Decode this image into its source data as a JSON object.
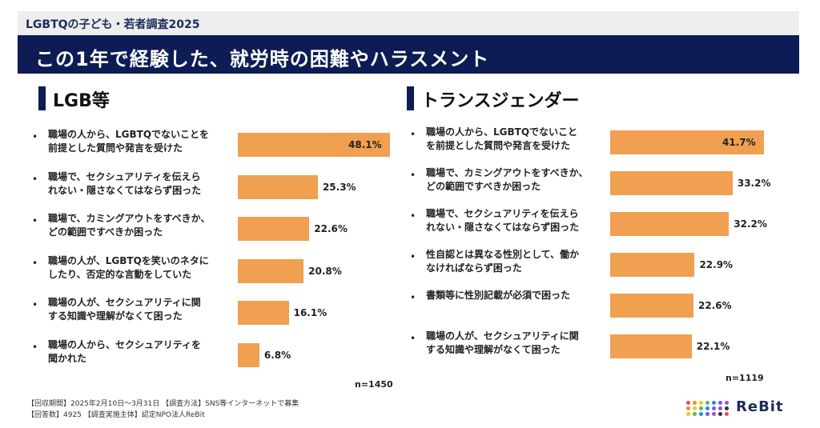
{
  "header": {
    "series_title": "LGBTQの子ども・若者調査2025",
    "main_title": "この1年で経験した、就労時の困難やハラスメント"
  },
  "chart_data": [
    {
      "type": "bar",
      "title": "LGB等",
      "categories": [
        "職場の人から、LGBTQでないことを\n前提とした質問や発言を受けた",
        "職場で、セクシュアリティを伝えら\nれない・隠さなくてはならず困った",
        "職場で、カミングアウトをすべきか、\nどの範囲ですべきか困った",
        "職場の人が、LGBTQを笑いのネタに\nしたり、否定的な言動をしていた",
        "職場の人が、セクシュアリティに関\nする知識や理解がなくて困った",
        "職場の人から、セクシュアリティを\n聞かれた"
      ],
      "values": [
        48.1,
        25.3,
        22.6,
        20.8,
        16.1,
        6.8
      ],
      "value_labels": [
        "48.1%",
        "25.3%",
        "22.6%",
        "20.8%",
        "16.1%",
        "6.8%"
      ],
      "n_label": "n=1450",
      "bar_color": "#f0a050"
    },
    {
      "type": "bar",
      "title": "トランスジェンダー",
      "categories": [
        "職場の人から、LGBTQでないこと\nを前提とした質問や発言を受けた",
        "職場で、カミングアウトをすべきか、\nどの範囲ですべきか困った",
        "職場で、セクシュアリティを伝えら\nれない・隠さなくてはならず困った",
        "性自認とは異なる性別として、働か\nなければならず困った",
        "書類等に性別記載が必須で困った",
        "職場の人が、セクシュアリティに関\nする知識や理解がなくて困った"
      ],
      "values": [
        41.7,
        33.2,
        32.2,
        22.9,
        22.6,
        22.1
      ],
      "value_labels": [
        "41.7%",
        "33.2%",
        "32.2%",
        "22.9%",
        "22.6%",
        "22.1%"
      ],
      "n_label": "n=1119",
      "bar_color": "#f0a050"
    }
  ],
  "footer": {
    "line1": "【回収期間】2025年2月10日〜3月31日 【調査方法】SNS等インターネットで募集",
    "line2": "【回答数】4925 【調査実施主体】認定NPO法人ReBit",
    "logo_text": "ReBit",
    "logo_colors": [
      "#e84a5f",
      "#f28c28",
      "#f5c518",
      "#5cb85c",
      "#2e86de",
      "#6c5ce7",
      "#9b59b6",
      "#333333"
    ]
  }
}
